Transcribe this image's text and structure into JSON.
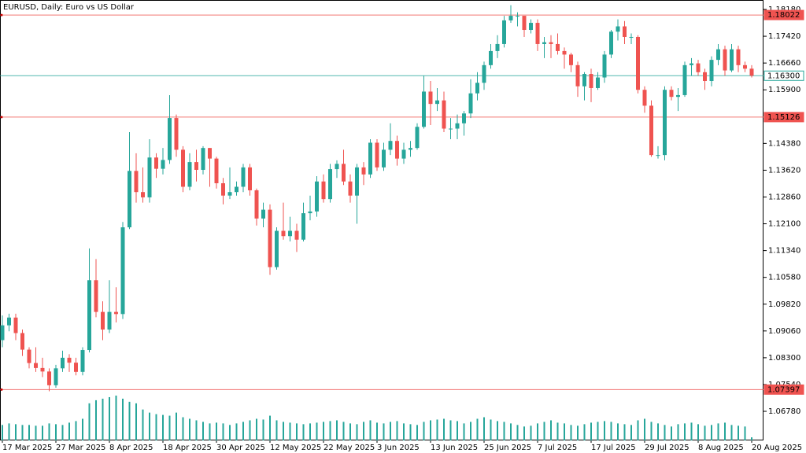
{
  "chart_data": {
    "type": "candlestick",
    "title": "EURUSD, Daily:  Euro vs US Dollar",
    "categories": [
      "17 Mar 2025",
      null,
      null,
      null,
      null,
      null,
      null,
      null,
      "27 Mar 2025",
      null,
      null,
      null,
      null,
      null,
      null,
      null,
      "8 Apr 2025",
      null,
      null,
      null,
      null,
      null,
      null,
      null,
      "18 Apr 2025",
      null,
      null,
      null,
      null,
      null,
      null,
      null,
      "30 Apr 2025",
      null,
      null,
      null,
      null,
      null,
      null,
      null,
      "12 May 2025",
      null,
      null,
      null,
      null,
      null,
      null,
      null,
      "22 May 2025",
      null,
      null,
      null,
      null,
      null,
      null,
      null,
      "3 Jun 2025",
      null,
      null,
      null,
      null,
      null,
      null,
      null,
      "13 Jun 2025",
      null,
      null,
      null,
      null,
      null,
      null,
      null,
      "25 Jun 2025",
      null,
      null,
      null,
      null,
      null,
      null,
      null,
      "7 Jul 2025",
      null,
      null,
      null,
      null,
      null,
      null,
      null,
      "17 Jul 2025",
      null,
      null,
      null,
      null,
      null,
      null,
      null,
      "29 Jul 2025",
      null,
      null,
      null,
      null,
      null,
      null,
      null,
      "8 Aug 2025",
      null,
      null,
      null,
      null,
      null,
      null,
      null,
      "20 Aug 2025"
    ],
    "open": [
      1.088,
      1.0922,
      1.0944,
      1.09,
      1.0853,
      1.0815,
      1.0801,
      1.0791,
      1.0752,
      1.08,
      1.083,
      1.0816,
      1.079,
      1.0852,
      1.105,
      1.096,
      1.091,
      1.096,
      1.0954,
      1.12,
      1.136,
      1.13,
      1.1285,
      1.1398,
      1.1366,
      1.1391,
      1.151,
      1.142,
      1.1315,
      1.1385,
      1.1363,
      1.1425,
      1.1395,
      1.1325,
      1.129,
      1.13,
      1.1315,
      1.137,
      1.1305,
      1.1225,
      1.125,
      1.1087,
      1.119,
      1.1175,
      1.119,
      1.1165,
      1.124,
      1.1245,
      1.133,
      1.128,
      1.1365,
      1.138,
      1.133,
      1.129,
      1.137,
      1.135,
      1.144,
      1.137,
      1.142,
      1.1445,
      1.1395,
      1.142,
      1.1425,
      1.1485,
      1.1585,
      1.155,
      1.156,
      1.148,
      1.148,
      1.1495,
      1.1523,
      1.158,
      1.161,
      1.166,
      1.17,
      1.172,
      1.1787,
      1.18,
      1.18,
      1.176,
      1.178,
      1.172,
      1.1725,
      1.172,
      1.17,
      1.169,
      1.166,
      1.16,
      1.1635,
      1.1595,
      1.1625,
      1.169,
      1.1755,
      1.177,
      1.174,
      1.174,
      1.159,
      1.1545,
      1.1405,
      1.1405,
      1.159,
      1.157,
      1.1575,
      1.166,
      1.1665,
      1.164,
      1.1615,
      1.1675,
      1.1705,
      1.1645,
      1.1705,
      1.166,
      1.165
    ],
    "high": [
      1.095,
      1.0955,
      1.0955,
      1.091,
      1.086,
      1.086,
      1.083,
      1.08,
      1.081,
      1.085,
      1.084,
      1.083,
      1.086,
      1.114,
      1.111,
      1.099,
      1.105,
      1.103,
      1.1215,
      1.147,
      1.141,
      1.137,
      1.145,
      1.141,
      1.1425,
      1.1575,
      1.152,
      1.143,
      1.141,
      1.142,
      1.143,
      1.1425,
      1.14,
      1.134,
      1.137,
      1.133,
      1.138,
      1.138,
      1.131,
      1.127,
      1.1265,
      1.12,
      1.127,
      1.123,
      1.121,
      1.127,
      1.129,
      1.1345,
      1.135,
      1.138,
      1.139,
      1.142,
      1.135,
      1.138,
      1.1385,
      1.145,
      1.145,
      1.144,
      1.1495,
      1.146,
      1.144,
      1.1445,
      1.1495,
      1.163,
      1.1615,
      1.1595,
      1.1585,
      1.151,
      1.152,
      1.153,
      1.162,
      1.164,
      1.167,
      1.172,
      1.1745,
      1.18,
      1.183,
      1.181,
      1.179,
      1.179,
      1.179,
      1.174,
      1.1745,
      1.175,
      1.171,
      1.1695,
      1.167,
      1.164,
      1.165,
      1.164,
      1.17,
      1.176,
      1.179,
      1.1785,
      1.175,
      1.1745,
      1.16,
      1.156,
      1.143,
      1.16,
      1.16,
      1.1595,
      1.167,
      1.168,
      1.1675,
      1.165,
      1.1685,
      1.172,
      1.1715,
      1.172,
      1.1715,
      1.167,
      1.166
    ],
    "low": [
      1.086,
      1.0905,
      1.088,
      1.0835,
      1.08,
      1.079,
      1.0775,
      1.0735,
      1.0745,
      1.079,
      1.079,
      1.078,
      1.078,
      1.0845,
      1.0945,
      1.088,
      1.09,
      1.093,
      1.094,
      1.1195,
      1.127,
      1.127,
      1.127,
      1.134,
      1.135,
      1.138,
      1.14,
      1.13,
      1.1305,
      1.133,
      1.135,
      1.1315,
      1.131,
      1.1265,
      1.128,
      1.129,
      1.13,
      1.129,
      1.1205,
      1.12,
      1.1065,
      1.108,
      1.1165,
      1.116,
      1.113,
      1.116,
      1.122,
      1.123,
      1.127,
      1.127,
      1.134,
      1.132,
      1.127,
      1.121,
      1.132,
      1.134,
      1.136,
      1.136,
      1.1405,
      1.1375,
      1.138,
      1.14,
      1.142,
      1.148,
      1.149,
      1.153,
      1.147,
      1.145,
      1.145,
      1.146,
      1.151,
      1.156,
      1.159,
      1.165,
      1.168,
      1.171,
      1.178,
      1.177,
      1.174,
      1.175,
      1.17,
      1.168,
      1.168,
      1.169,
      1.165,
      1.164,
      1.157,
      1.156,
      1.1555,
      1.159,
      1.161,
      1.168,
      1.173,
      1.172,
      1.172,
      1.158,
      1.1525,
      1.14,
      1.1395,
      1.139,
      1.156,
      1.153,
      1.157,
      1.163,
      1.163,
      1.159,
      1.16,
      1.166,
      1.163,
      1.164,
      1.164,
      1.164,
      1.1625
    ],
    "close": [
      1.0922,
      1.0944,
      1.09,
      1.0853,
      1.0815,
      1.0801,
      1.0791,
      1.0752,
      1.08,
      1.083,
      1.0816,
      1.079,
      1.0852,
      1.105,
      1.096,
      1.091,
      1.096,
      1.0954,
      1.12,
      1.136,
      1.13,
      1.1285,
      1.1398,
      1.1366,
      1.1391,
      1.151,
      1.142,
      1.1315,
      1.1385,
      1.1363,
      1.1425,
      1.1395,
      1.1325,
      1.129,
      1.13,
      1.1315,
      1.137,
      1.1305,
      1.1225,
      1.125,
      1.1087,
      1.119,
      1.1175,
      1.119,
      1.1165,
      1.124,
      1.1245,
      1.133,
      1.128,
      1.1365,
      1.138,
      1.133,
      1.129,
      1.137,
      1.135,
      1.144,
      1.137,
      1.142,
      1.1445,
      1.1395,
      1.142,
      1.1425,
      1.1485,
      1.1585,
      1.155,
      1.156,
      1.148,
      1.148,
      1.1495,
      1.1523,
      1.158,
      1.161,
      1.166,
      1.17,
      1.172,
      1.1787,
      1.18,
      1.18,
      1.176,
      1.178,
      1.172,
      1.1725,
      1.172,
      1.17,
      1.169,
      1.166,
      1.16,
      1.1635,
      1.1595,
      1.1625,
      1.169,
      1.1755,
      1.177,
      1.174,
      1.174,
      1.159,
      1.1545,
      1.1405,
      1.1405,
      1.159,
      1.157,
      1.1575,
      1.166,
      1.1665,
      1.164,
      1.1615,
      1.1675,
      1.1705,
      1.1645,
      1.1705,
      1.166,
      1.165,
      1.163
    ],
    "volume": [
      20,
      22,
      21,
      20,
      20,
      19,
      19,
      22,
      21,
      20,
      23,
      25,
      28,
      48,
      52,
      54,
      56,
      58,
      54,
      50,
      48,
      40,
      36,
      34,
      33,
      32,
      36,
      30,
      28,
      26,
      24,
      22,
      23,
      22,
      20,
      22,
      24,
      26,
      28,
      27,
      32,
      26,
      24,
      23,
      22,
      21,
      22,
      23,
      24,
      25,
      26,
      24,
      22,
      21,
      24,
      26,
      23,
      22,
      24,
      25,
      22,
      21,
      20,
      24,
      26,
      27,
      28,
      26,
      25,
      22,
      24,
      28,
      30,
      27,
      25,
      24,
      22,
      20,
      18,
      19,
      22,
      24,
      26,
      23,
      22,
      20,
      19,
      21,
      23,
      24,
      25,
      24,
      22,
      21,
      20,
      26,
      28,
      24,
      22,
      20,
      18,
      21,
      22,
      23,
      21,
      19,
      20,
      22,
      23,
      20,
      19,
      18,
      4
    ],
    "up_color": "#26a69a",
    "down_color": "#ef5350",
    "volume_color": "#26a69a",
    "ylim": [
      1.05955,
      1.18448
    ],
    "yticks": [
      {
        "value": 1.1818,
        "label": "1.18180"
      },
      {
        "value": 1.1742,
        "label": "1.17420"
      },
      {
        "value": 1.1666,
        "label": "1.16660"
      },
      {
        "value": 1.159,
        "label": "1.15900"
      },
      {
        "value": 1.1438,
        "label": "1.14380"
      },
      {
        "value": 1.1362,
        "label": "1.13620"
      },
      {
        "value": 1.1286,
        "label": "1.12860"
      },
      {
        "value": 1.121,
        "label": "1.12100"
      },
      {
        "value": 1.1134,
        "label": "1.11340"
      },
      {
        "value": 1.1058,
        "label": "1.10580"
      },
      {
        "value": 1.0982,
        "label": "1.09820"
      },
      {
        "value": 1.0906,
        "label": "1.09060"
      },
      {
        "value": 1.083,
        "label": "1.08300"
      },
      {
        "value": 1.0754,
        "label": "1.07540"
      },
      {
        "value": 1.0678,
        "label": "1.06780"
      }
    ],
    "hlines": [
      {
        "value": 1.18022,
        "label": "1.18022",
        "color": "#ef5350"
      },
      {
        "value": 1.163,
        "label": "1.16300",
        "color": "#26a69a"
      },
      {
        "value": 1.15126,
        "label": "1.15126",
        "color": "#ef5350"
      },
      {
        "value": 1.07397,
        "label": "1.07397",
        "color": "#ef5350"
      }
    ],
    "grid": false
  }
}
